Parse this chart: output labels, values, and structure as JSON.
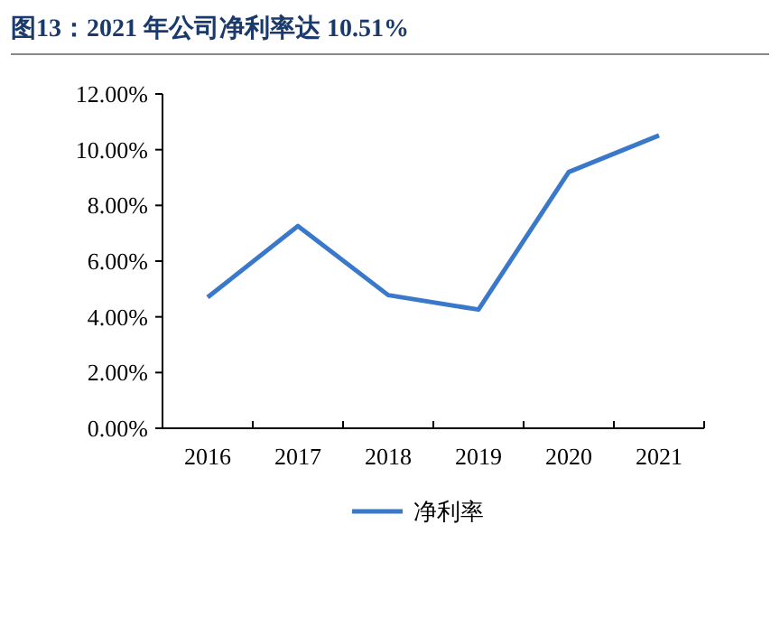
{
  "chart_data": {
    "type": "line",
    "title": "图13：2021 年公司净利率达 10.51%",
    "categories": [
      "2016",
      "2017",
      "2018",
      "2019",
      "2020",
      "2021"
    ],
    "series": [
      {
        "name": "净利率",
        "color": "#3a78c9",
        "values": [
          4.7,
          7.26,
          4.78,
          4.26,
          9.2,
          10.51
        ]
      }
    ],
    "ylim": [
      0,
      12
    ],
    "yticks": [
      {
        "value": 0,
        "label": "0.00%"
      },
      {
        "value": 2,
        "label": "2.00%"
      },
      {
        "value": 4,
        "label": "4.00%"
      },
      {
        "value": 6,
        "label": "6.00%"
      },
      {
        "value": 8,
        "label": "8.00%"
      },
      {
        "value": 10,
        "label": "10.00%"
      },
      {
        "value": 12,
        "label": "12.00%"
      }
    ],
    "grid": false,
    "legend": "bottom",
    "marker": "none",
    "line_style": "solid"
  }
}
